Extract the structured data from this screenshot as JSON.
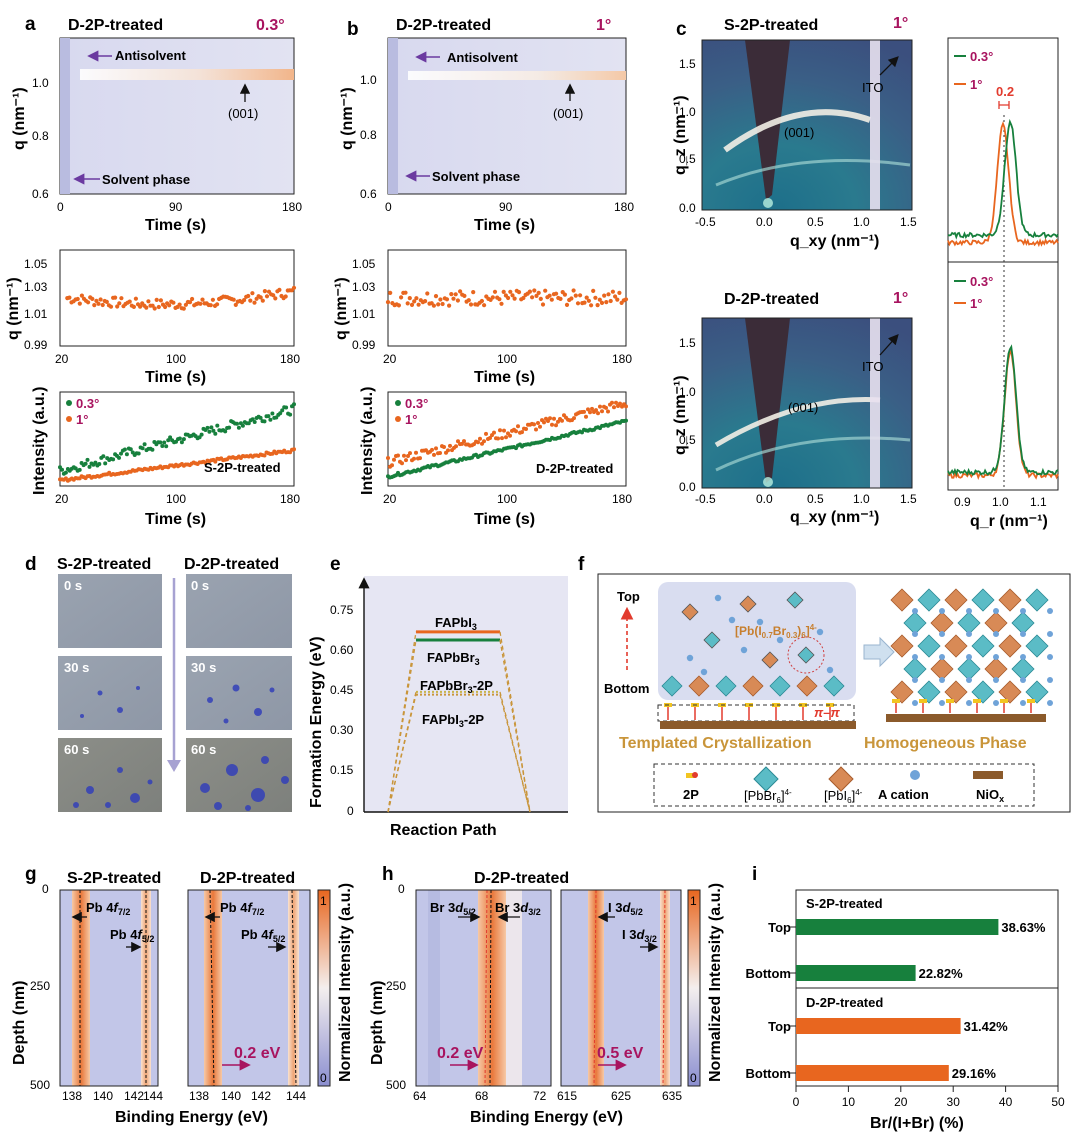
{
  "colors": {
    "orange": "#e8661f",
    "green": "#17803d",
    "magenta": "#a8145f",
    "purple": "#6b3aa0",
    "bg": "#e6e6f3"
  },
  "panel_a": {
    "label": "a",
    "title": "D-2P-treated",
    "angle": "0.3°",
    "map_ylabel": "q (nm⁻¹)",
    "xlabel": "Time (s)",
    "map_yticks": [
      "1.0",
      "0.8",
      "0.6"
    ],
    "map_xticks": [
      "0",
      "90",
      "180"
    ],
    "antisolvent": "Antisolvent",
    "solvent": "Solvent phase",
    "peak": "(001)",
    "q_ylabel": "q (nm⁻¹)",
    "q_yticks": [
      "1.05",
      "1.03",
      "1.01",
      "0.99"
    ],
    "q_xticks": [
      "20",
      "100",
      "180"
    ],
    "int_ylabel": "Intensity (a.u.)",
    "int_xticks": [
      "20",
      "100",
      "180"
    ],
    "legend": [
      "0.3°",
      "1°"
    ],
    "sample": "S-2P-treated"
  },
  "panel_b": {
    "label": "b",
    "title": "D-2P-treated",
    "angle": "1°",
    "map_ylabel": "q (nm⁻¹)",
    "xlabel": "Time (s)",
    "map_yticks": [
      "1.0",
      "0.8",
      "0.6"
    ],
    "map_xticks": [
      "0",
      "90",
      "180"
    ],
    "antisolvent": "Antisolvent",
    "solvent": "Solvent phase",
    "peak": "(001)",
    "q_ylabel": "q (nm⁻¹)",
    "q_yticks": [
      "1.05",
      "1.03",
      "1.01",
      "0.99"
    ],
    "q_xticks": [
      "20",
      "100",
      "180"
    ],
    "int_ylabel": "Intensity (a.u.)",
    "int_xticks": [
      "20",
      "100",
      "180"
    ],
    "legend": [
      "0.3°",
      "1°"
    ],
    "sample": "D-2P-treated"
  },
  "panel_c": {
    "label": "c",
    "top_title": "S-2P-treated",
    "bottom_title": "D-2P-treated",
    "angle": "1°",
    "ylabel": "q_z (nm⁻¹)",
    "xlabel": "q_xy (nm⁻¹)",
    "yticks": [
      "1.5",
      "1.0",
      "0.5",
      "0.0"
    ],
    "xticks": [
      "-0.5",
      "0.0",
      "0.5",
      "1.0",
      "1.5"
    ],
    "peak": "(001)",
    "ito": "ITO",
    "profile_legend": [
      "0.3°",
      "1°"
    ],
    "shift": "0.2",
    "profile_xlabel": "q_r (nm⁻¹)",
    "profile_xticks": [
      "0.9",
      "1.0",
      "1.1"
    ]
  },
  "panel_d": {
    "label": "d",
    "cols": [
      "S-2P-treated",
      "D-2P-treated"
    ],
    "times": [
      "0 s",
      "30 s",
      "60 s"
    ]
  },
  "panel_e": {
    "label": "e",
    "ylabel": "Formation Energy (eV)",
    "xlabel": "Reaction Path",
    "yticks": [
      "0.75",
      "0.60",
      "0.45",
      "0.30",
      "0.15",
      "0"
    ],
    "levels": [
      "FAPbI3",
      "FAPbBr3",
      "FAPbBr3-2P",
      "FAPbI3-2P"
    ]
  },
  "panel_f": {
    "label": "f",
    "top": "Top",
    "bottom": "Bottom",
    "formula": "[Pb(I0.7Br0.3)6]4-",
    "pipi": "π–π",
    "left_caption": "Templated Crystallization",
    "right_caption": "Homogeneous Phase",
    "legend": [
      "2P",
      "[PbBr6]4-",
      "[PbI6]4-",
      "A cation",
      "NiOx"
    ]
  },
  "panel_g": {
    "label": "g",
    "titles": [
      "S-2P-treated",
      "D-2P-treated"
    ],
    "ylabel": "Depth (nm)",
    "xlabel": "Binding Energy (eV)",
    "yticks": [
      "0",
      "250",
      "500"
    ],
    "xticks": [
      "138",
      "140",
      "142",
      "144"
    ],
    "peak1": "Pb 4f7/2",
    "peak2": "Pb 4f5/2",
    "shift": "0.2 eV",
    "cbar": [
      "1",
      "0"
    ],
    "cbar_label": "Normalized Intensity (a.u.)"
  },
  "panel_h": {
    "label": "h",
    "title": "D-2P-treated",
    "ylabel": "Depth (nm)",
    "xlabel": "Binding Energy (eV)",
    "yticks": [
      "0",
      "250",
      "500"
    ],
    "xticks_left": [
      "64",
      "68",
      "72"
    ],
    "xticks_right": [
      "615",
      "625",
      "635"
    ],
    "br1": "Br 3d5/2",
    "br2": "Br 3d3/2",
    "i1": "I 3d5/2",
    "i2": "I 3d3/2",
    "shift_left": "0.2 eV",
    "shift_right": "0.5 eV",
    "cbar": [
      "1",
      "0"
    ],
    "cbar_label": "Normalized Intensity (a.u.)"
  },
  "chart_data": [
    {
      "type": "bar",
      "panel": "i",
      "orientation": "horizontal",
      "xlabel": "Br/(I+Br) (%)",
      "xlim": [
        0,
        50
      ],
      "xticks": [
        "0",
        "10",
        "20",
        "30",
        "40",
        "50"
      ],
      "groups": [
        {
          "name": "S-2P-treated",
          "categories": [
            "Top",
            "Bottom"
          ],
          "values": [
            38.63,
            22.82
          ],
          "labels": [
            "38.63%",
            "22.82%"
          ],
          "color": "#17803d"
        },
        {
          "name": "D-2P-treated",
          "categories": [
            "Top",
            "Bottom"
          ],
          "values": [
            31.42,
            29.16
          ],
          "labels": [
            "31.42%",
            "29.16%"
          ],
          "color": "#e8661f"
        }
      ]
    },
    {
      "type": "scatter",
      "panel": "a-middle",
      "xlabel": "Time (s)",
      "ylabel": "q (nm⁻¹)",
      "xlim": [
        20,
        180
      ],
      "ylim": [
        0.99,
        1.05
      ],
      "series": [
        {
          "name": "q",
          "x_range": [
            25,
            180
          ],
          "mean": 1.016,
          "start": 1.02,
          "end": 1.024,
          "noise": 0.004
        }
      ]
    },
    {
      "type": "scatter",
      "panel": "b-middle",
      "xlabel": "Time (s)",
      "ylabel": "q (nm⁻¹)",
      "xlim": [
        20,
        180
      ],
      "ylim": [
        0.99,
        1.05
      ],
      "series": [
        {
          "name": "q",
          "x_range": [
            20,
            180
          ],
          "mean": 1.02,
          "start": 1.02,
          "end": 1.02,
          "noise": 0.006
        }
      ]
    },
    {
      "type": "scatter",
      "panel": "a-bottom",
      "xlabel": "Time (s)",
      "ylabel": "Intensity (a.u.)",
      "xlim": [
        20,
        180
      ],
      "ylim": [
        0,
        1
      ],
      "series": [
        {
          "name": "0.3°",
          "start": 0.16,
          "end": 0.82,
          "noise": 0.05
        },
        {
          "name": "1°",
          "start": 0.06,
          "end": 0.38,
          "noise": 0.015
        }
      ]
    },
    {
      "type": "scatter",
      "panel": "b-bottom",
      "xlabel": "Time (s)",
      "ylabel": "Intensity (a.u.)",
      "xlim": [
        20,
        180
      ],
      "ylim": [
        0,
        1
      ],
      "series": [
        {
          "name": "0.3°",
          "start": 0.1,
          "end": 0.69,
          "noise": 0.015
        },
        {
          "name": "1°",
          "start": 0.25,
          "end": 0.88,
          "noise": 0.05
        }
      ]
    },
    {
      "type": "line",
      "panel": "c-profile-top",
      "xlabel": "q_r (nm⁻¹)",
      "xlim": [
        0.85,
        1.15
      ],
      "series": [
        {
          "name": "0.3°",
          "center": 1.02,
          "height": 0.75,
          "baseline": 0.1
        },
        {
          "name": "1°",
          "center": 1.0,
          "height": 0.78,
          "baseline": 0.05
        }
      ]
    },
    {
      "type": "line",
      "panel": "c-profile-bottom",
      "xlabel": "q_r (nm⁻¹)",
      "xlim": [
        0.85,
        1.15
      ],
      "series": [
        {
          "name": "0.3°",
          "center": 1.02,
          "height": 0.78,
          "baseline": 0.08
        },
        {
          "name": "1°",
          "center": 1.02,
          "height": 0.78,
          "baseline": 0.06
        }
      ]
    },
    {
      "type": "line",
      "panel": "e",
      "ylabel": "Formation Energy (eV)",
      "xlabel": "Reaction Path",
      "ylim": [
        0,
        0.85
      ],
      "series": [
        {
          "name": "FAPbI3",
          "value": 0.66
        },
        {
          "name": "FAPbBr3",
          "value": 0.63
        },
        {
          "name": "FAPbBr3-2P",
          "value": 0.44
        },
        {
          "name": "FAPbI3-2P",
          "value": 0.43
        }
      ]
    }
  ]
}
